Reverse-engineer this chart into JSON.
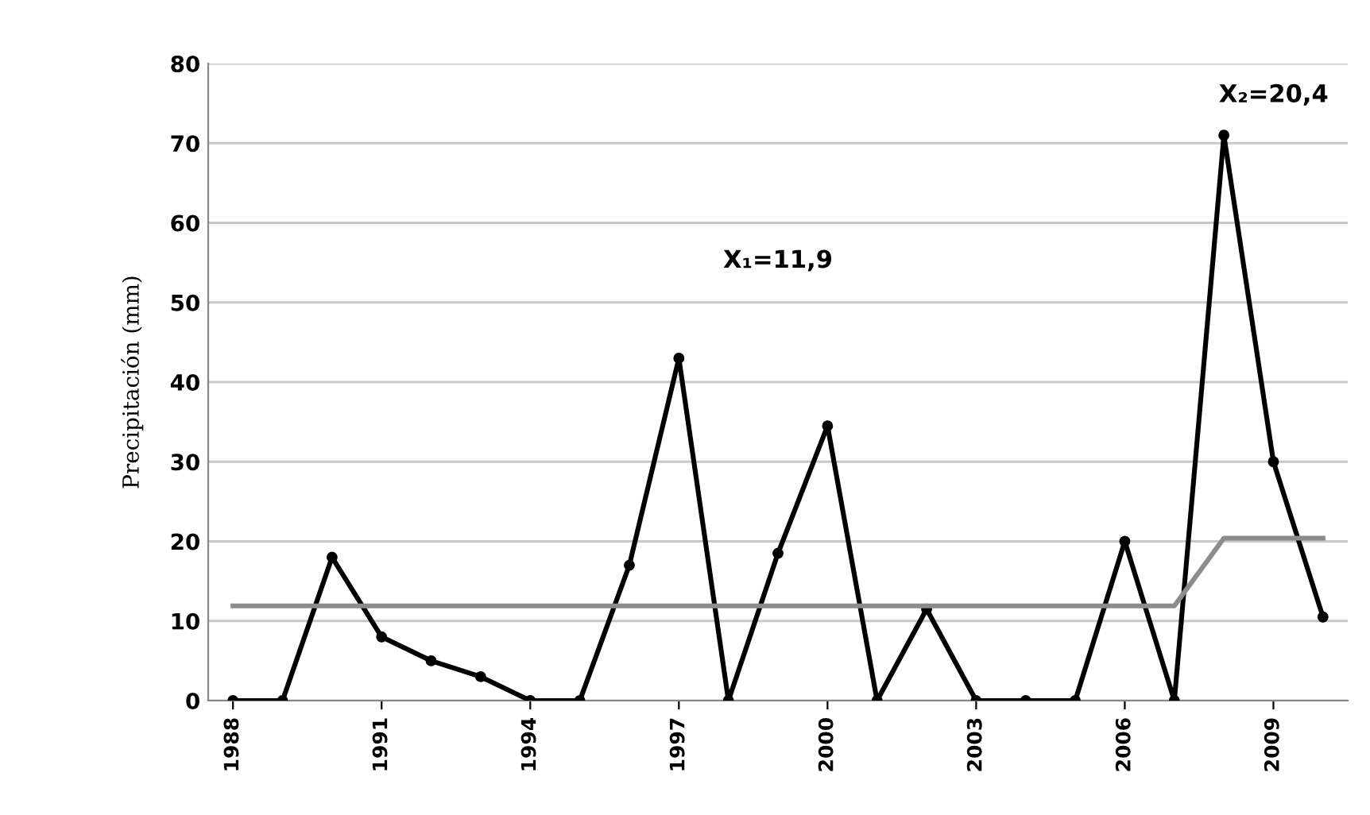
{
  "chart_data": {
    "type": "line",
    "ylabel": "Precipitación (mm)",
    "x": [
      1988,
      1989,
      1990,
      1991,
      1992,
      1993,
      1994,
      1995,
      1996,
      1997,
      1998,
      1999,
      2000,
      2001,
      2002,
      2003,
      2004,
      2005,
      2006,
      2007,
      2008,
      2009,
      2010
    ],
    "series": [
      {
        "color": "#000000",
        "marker": "circle",
        "values": [
          0,
          0,
          18,
          8,
          5,
          3,
          0,
          0,
          17,
          43,
          0,
          18.5,
          34.5,
          0,
          11.5,
          0,
          0,
          0,
          20,
          0,
          71,
          30,
          10.5
        ]
      },
      {
        "color": "#8c8c8c",
        "marker": "none",
        "values": [
          11.9,
          11.9,
          11.9,
          11.9,
          11.9,
          11.9,
          11.9,
          11.9,
          11.9,
          11.9,
          11.9,
          11.9,
          11.9,
          11.9,
          11.9,
          11.9,
          11.9,
          11.9,
          11.9,
          11.9,
          20.4,
          20.4,
          20.4
        ]
      }
    ],
    "xlim": [
      1987.5,
      2010.5
    ],
    "xticks": [
      1988,
      1991,
      1994,
      1997,
      2000,
      2003,
      2006,
      2009
    ],
    "ylim": [
      0,
      80
    ],
    "yticks": [
      0,
      10,
      20,
      30,
      40,
      50,
      60,
      70,
      80
    ],
    "grid": "y",
    "legend": false,
    "annotations": [
      "X₁=11,9",
      "X₂=20,4"
    ]
  }
}
